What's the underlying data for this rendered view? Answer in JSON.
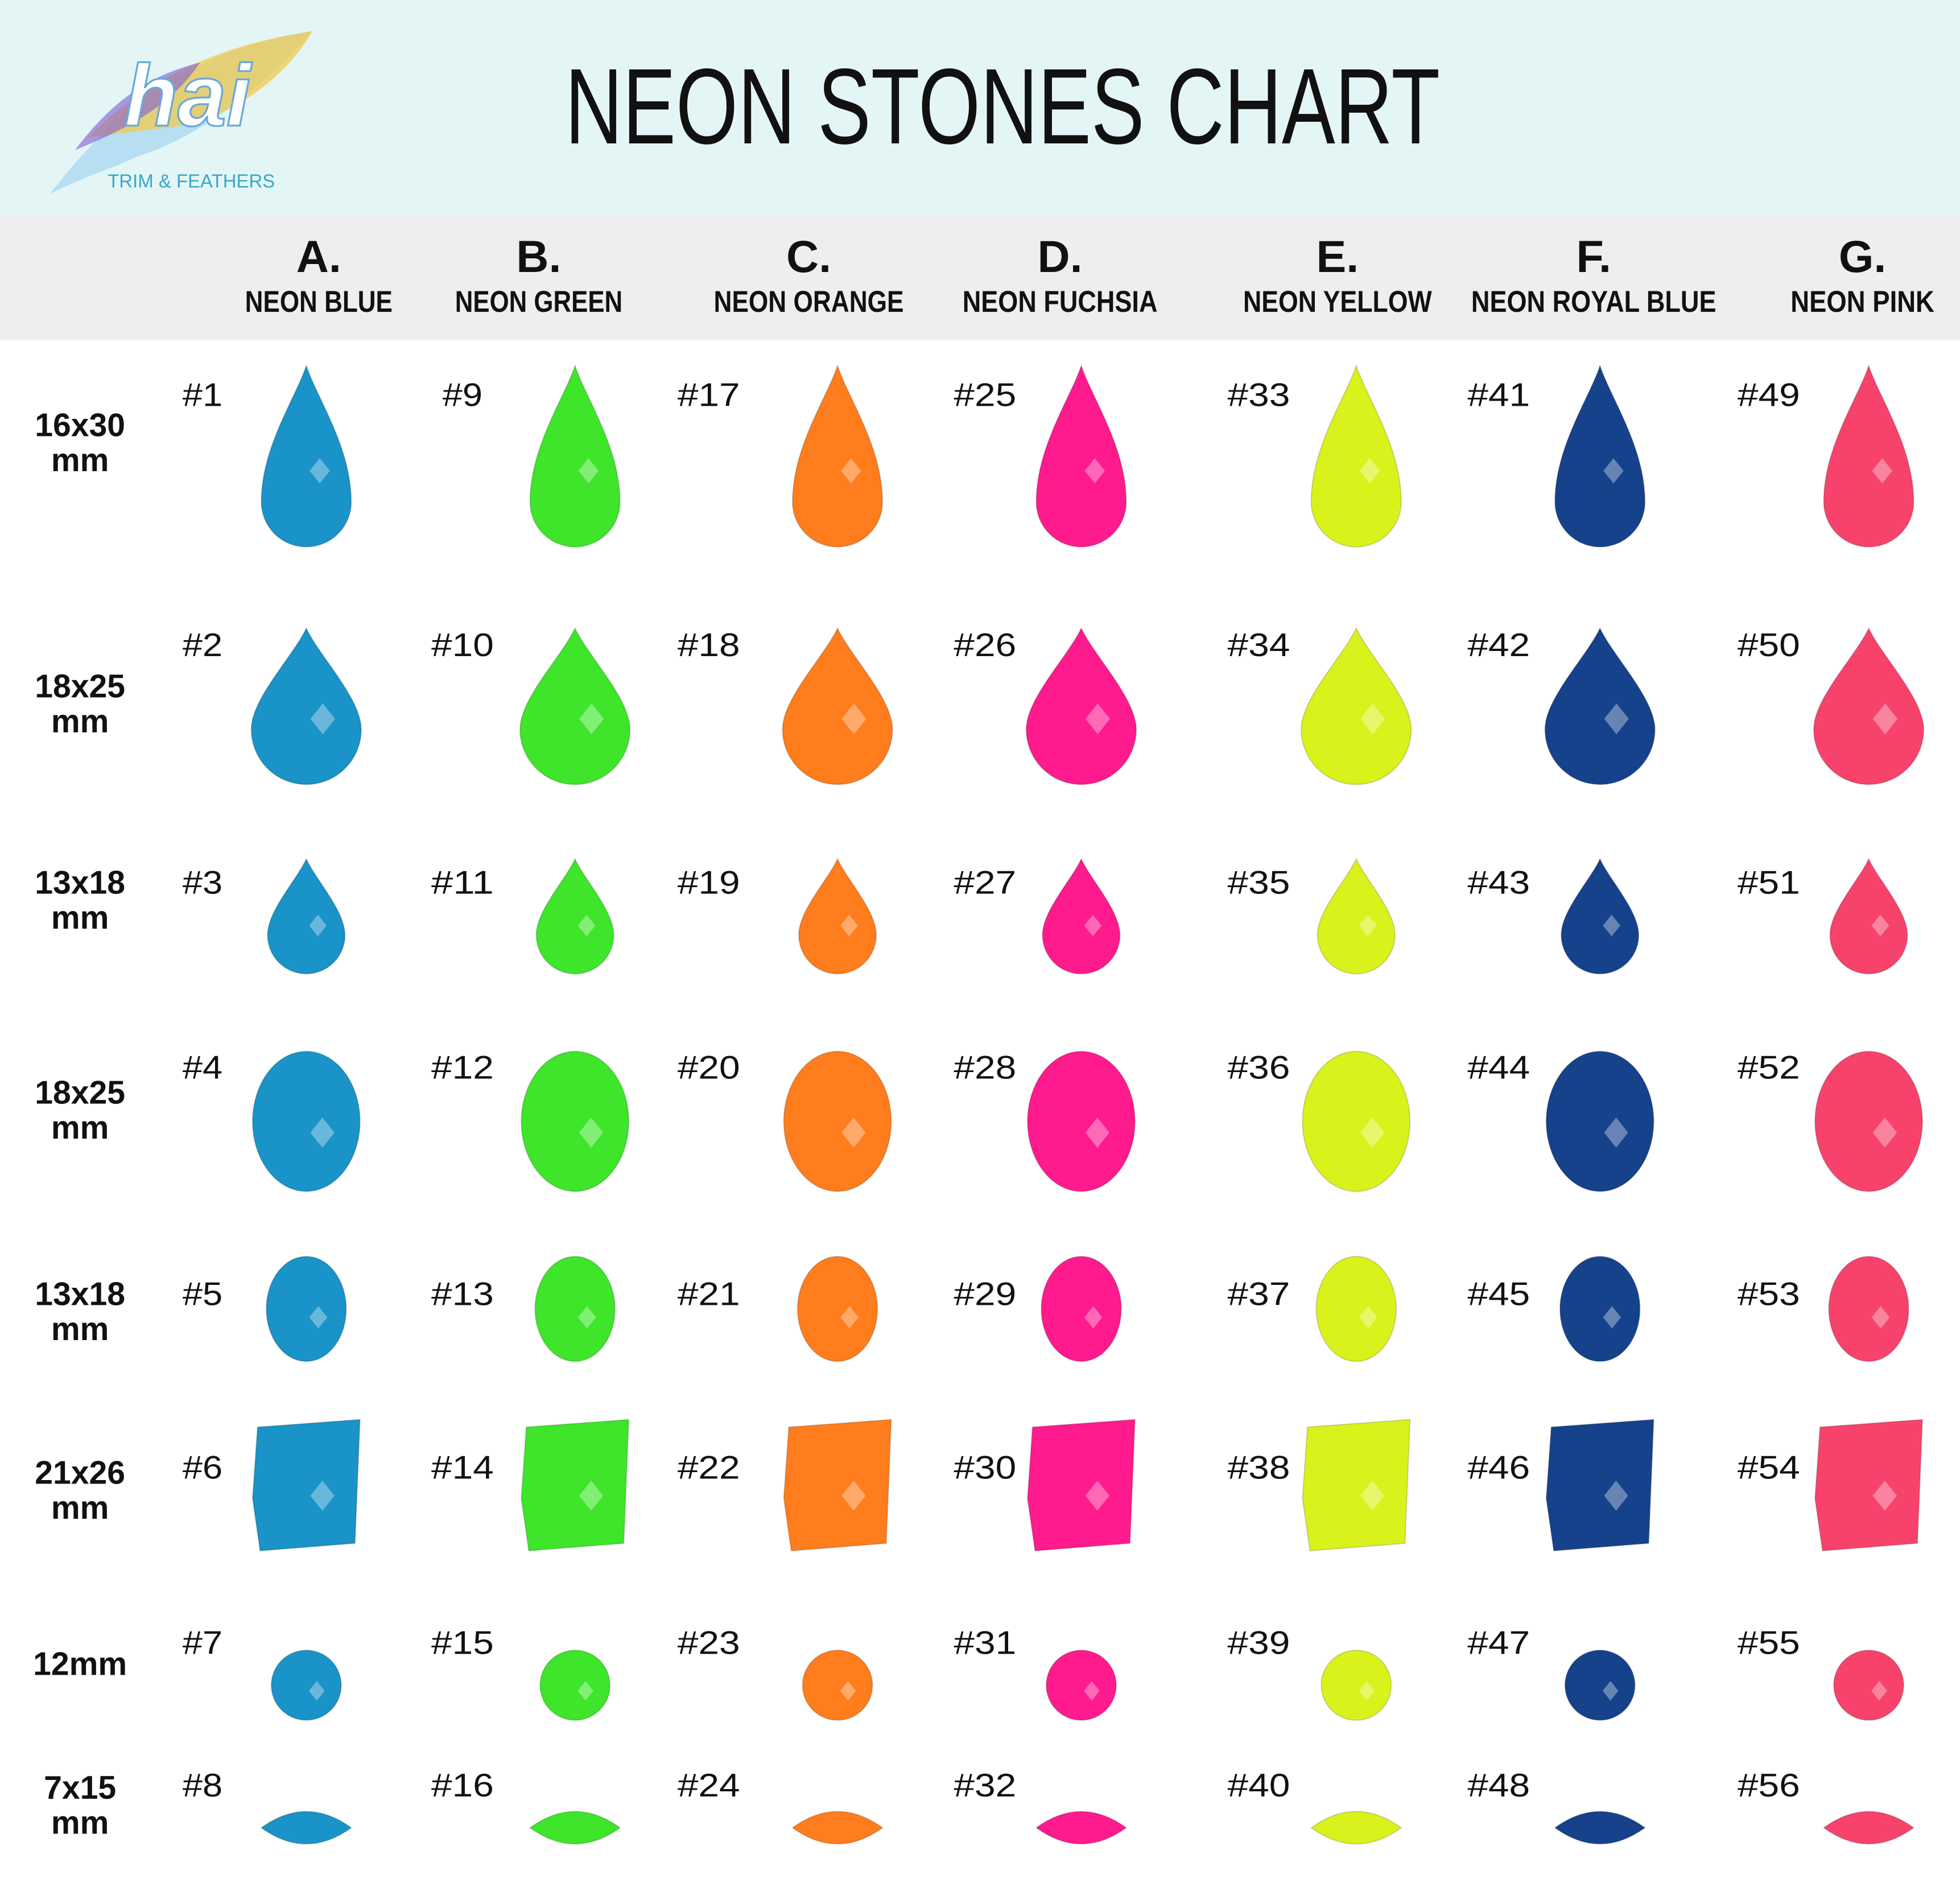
{
  "logo": {
    "brand": "hai",
    "tagline": "TRIM & FEATHERS"
  },
  "header": {
    "title": "NEON STONES CHART"
  },
  "columns": [
    {
      "letter": "A.",
      "name": "NEON BLUE",
      "color": "#1a93c8"
    },
    {
      "letter": "B.",
      "name": "NEON GREEN",
      "color": "#3ee52a"
    },
    {
      "letter": "C.",
      "name": "NEON ORANGE",
      "color": "#ff7d1c"
    },
    {
      "letter": "D.",
      "name": "NEON FUCHSIA",
      "color": "#ff1a8e"
    },
    {
      "letter": "E.",
      "name": "NEON YELLOW",
      "color": "#daf21c"
    },
    {
      "letter": "F.",
      "name": "NEON ROYAL BLUE",
      "color": "#16428c"
    },
    {
      "letter": "G.",
      "name": "NEON PINK",
      "color": "#f7436c"
    }
  ],
  "rows": [
    {
      "size": [
        "16x30",
        "mm"
      ],
      "cells": [
        "#1",
        "#9",
        "#17",
        "#25",
        "#33",
        "#41",
        "#49"
      ]
    },
    {
      "size": [
        "18x25",
        "mm"
      ],
      "cells": [
        "#2",
        "#10",
        "#18",
        "#26",
        "#34",
        "#42",
        "#50"
      ]
    },
    {
      "size": [
        "13x18",
        "mm"
      ],
      "cells": [
        "#3",
        "#11",
        "#19",
        "#27",
        "#35",
        "#43",
        "#51"
      ]
    },
    {
      "size": [
        "18x25",
        "mm"
      ],
      "cells": [
        "#4",
        "#12",
        "#20",
        "#28",
        "#36",
        "#44",
        "#52"
      ]
    },
    {
      "size": [
        "13x18",
        "mm"
      ],
      "cells": [
        "#5",
        "#13",
        "#21",
        "#29",
        "#37",
        "#45",
        "#53"
      ]
    },
    {
      "size": [
        "21x26",
        "mm"
      ],
      "cells": [
        "#6",
        "#14",
        "#22",
        "#30",
        "#38",
        "#46",
        "#54"
      ]
    },
    {
      "size": [
        "12mm"
      ],
      "cells": [
        "#7",
        "#15",
        "#23",
        "#31",
        "#39",
        "#47",
        "#55"
      ]
    },
    {
      "size": [
        "7x15",
        "mm"
      ],
      "cells": [
        "#8",
        "#16",
        "#24",
        "#32",
        "#40",
        "#48",
        "#56"
      ]
    }
  ]
}
